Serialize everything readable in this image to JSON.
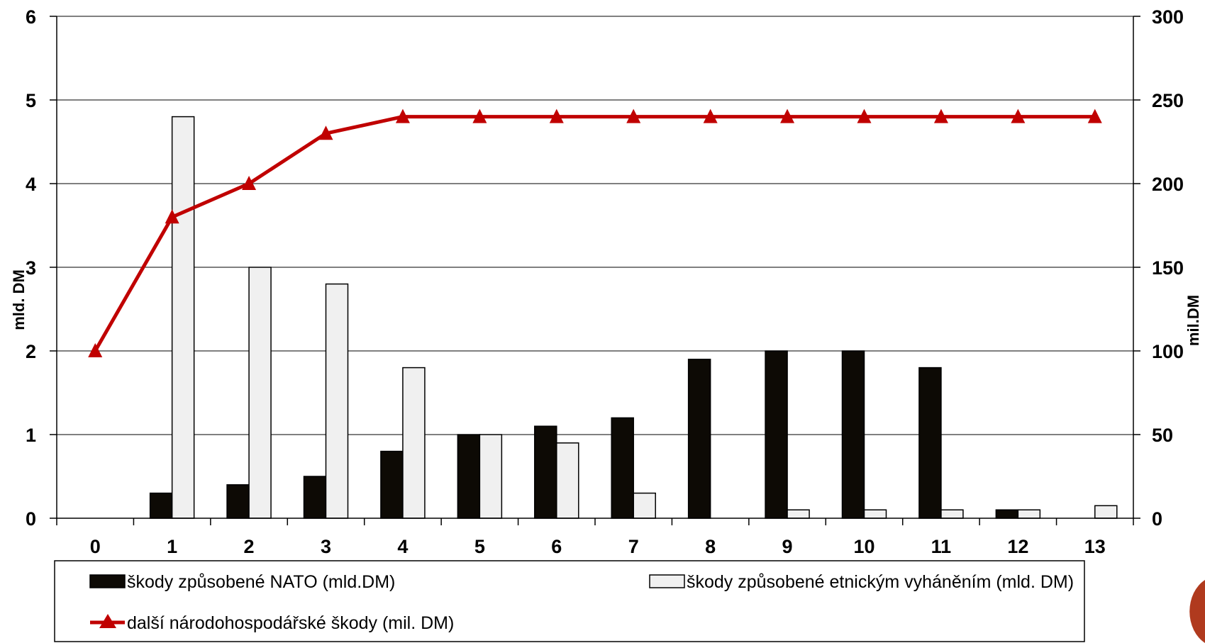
{
  "chart_data": {
    "type": "bar",
    "title": "",
    "categories": [
      "0",
      "1",
      "2",
      "3",
      "4",
      "5",
      "6",
      "7",
      "8",
      "9",
      "10",
      "11",
      "12",
      "13"
    ],
    "xlabel": "",
    "ylabel": "mld. DM",
    "y2label": "mil.DM",
    "ylim": [
      0,
      6
    ],
    "y2lim": [
      0,
      300
    ],
    "yticks": [
      "0",
      "1",
      "2",
      "3",
      "4",
      "5",
      "6"
    ],
    "y2ticks": [
      "0",
      "50",
      "100",
      "150",
      "200",
      "250",
      "300"
    ],
    "grid": true,
    "legend_position": "bottom",
    "series": [
      {
        "name": "škody způsobené NATO (mld.DM)",
        "type": "bar",
        "axis": "left",
        "color": "#0d0a05",
        "values": [
          0,
          0.3,
          0.4,
          0.5,
          0.8,
          1.0,
          1.1,
          1.2,
          1.9,
          2.0,
          2.0,
          1.8,
          0.1,
          0
        ]
      },
      {
        "name": "škody způsobené etnickým vyháněním (mld. DM)",
        "type": "bar",
        "axis": "left",
        "color": "#f0f0f0",
        "values": [
          0,
          4.8,
          3.0,
          2.8,
          1.8,
          1.0,
          0.9,
          0.3,
          0,
          0.1,
          0.1,
          0.1,
          0.1,
          0.15
        ]
      },
      {
        "name": "další národohospodářské škody (mil. DM)",
        "type": "line",
        "axis": "right",
        "color": "#c00000",
        "marker": "triangle",
        "values": [
          100,
          180,
          200,
          230,
          240,
          240,
          240,
          240,
          240,
          240,
          240,
          240,
          240,
          240
        ]
      }
    ]
  }
}
